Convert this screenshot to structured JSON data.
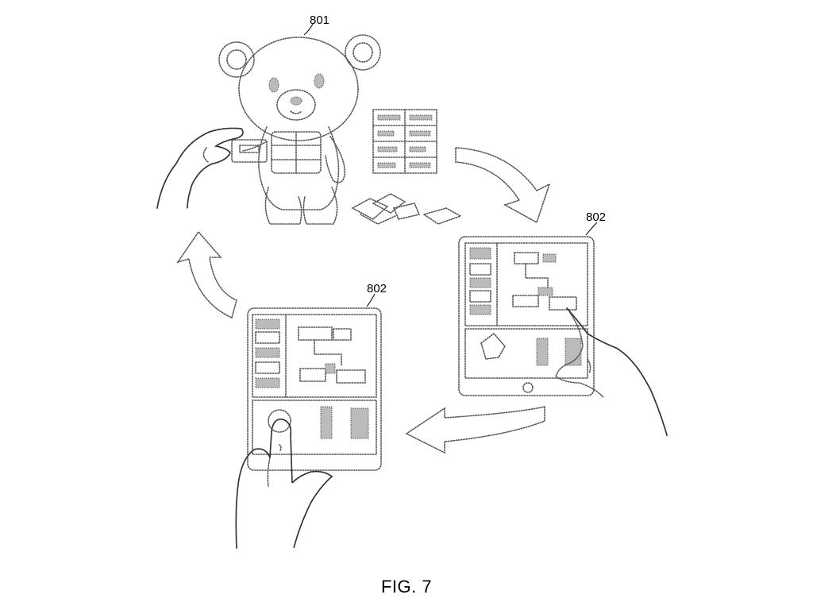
{
  "figure": {
    "caption": "FIG. 7",
    "labels": {
      "toy": "801",
      "tablet_right": "802",
      "tablet_left": "802"
    }
  }
}
